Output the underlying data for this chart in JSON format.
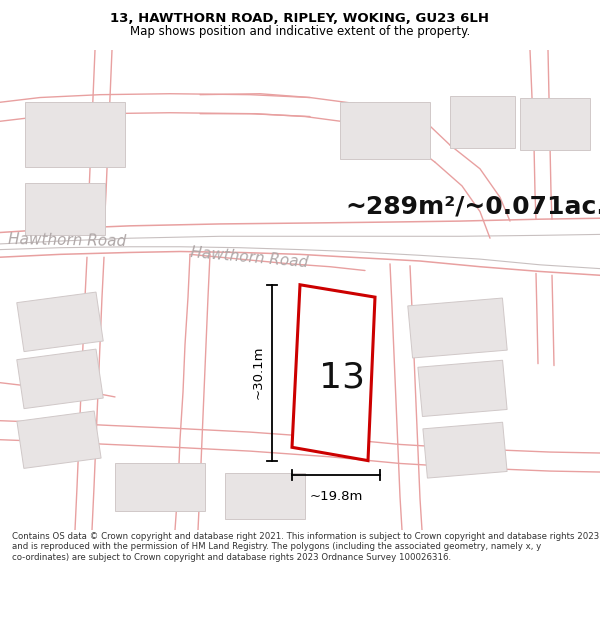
{
  "title_line1": "13, HAWTHORN ROAD, RIPLEY, WOKING, GU23 6LH",
  "title_line2": "Map shows position and indicative extent of the property.",
  "footer_text": "Contains OS data © Crown copyright and database right 2021. This information is subject to Crown copyright and database rights 2023 and is reproduced with the permission of HM Land Registry. The polygons (including the associated geometry, namely x, y co-ordinates) are subject to Crown copyright and database rights 2023 Ordnance Survey 100026316.",
  "area_label": "~289m²/~0.071ac.",
  "property_number": "13",
  "dim_width": "~19.8m",
  "dim_height": "~30.1m",
  "road_label1": "Hawthorn Road",
  "road_label2": "Hawthorn Road",
  "map_bg": "#ffffff",
  "building_fill": "#e8e4e4",
  "building_edge": "#d0c8c8",
  "property_fill": "#ffffff",
  "property_edge": "#cc0000",
  "pink": "#e8a0a0",
  "gray_road": "#c8c0c0",
  "dim_color": "#000000",
  "road_text_color": "#b0a8a8",
  "title_color": "#000000",
  "footer_color": "#333333",
  "title_fontsize": 9.5,
  "subtitle_fontsize": 8.5,
  "footer_fontsize": 6.2,
  "area_fontsize": 18,
  "number_fontsize": 26,
  "road_label_fontsize": 11
}
